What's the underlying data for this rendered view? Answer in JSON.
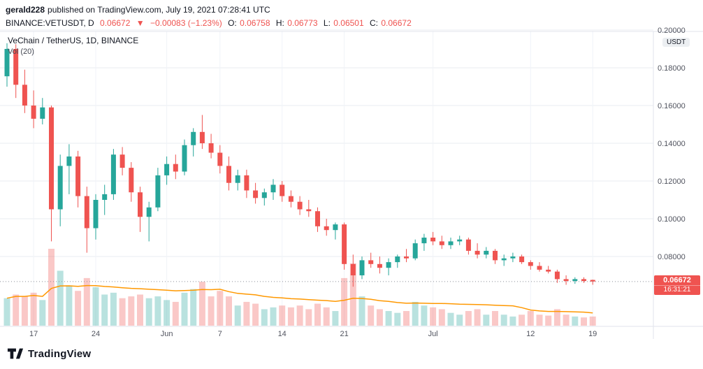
{
  "publisher": {
    "username": "gerald228",
    "suffix": "published on TradingView.com, July 19, 2021 07:28:41 UTC"
  },
  "symbol_bar": {
    "symbol": "BINANCE:VETUSDT, D",
    "price": "0.06672",
    "change_icon": "▼",
    "change": "−0.00083 (−1.23%)",
    "ohlc": [
      {
        "label": "O:",
        "value": "0.06758"
      },
      {
        "label": "H:",
        "value": "0.06773"
      },
      {
        "label": "L:",
        "value": "0.06501"
      },
      {
        "label": "C:",
        "value": "0.06672"
      }
    ]
  },
  "footer": {
    "brand": "TradingView"
  },
  "colors": {
    "up": "#26a69a",
    "down": "#ef5350",
    "vol_up": "rgba(38,166,154,0.32)",
    "vol_down": "rgba(239,83,80,0.32)",
    "ma_line": "#ff9800",
    "grid_h": "#e9edf2",
    "grid_v": "#f0f3f8",
    "border": "#e0e3eb",
    "axis_text": "#50535e",
    "price_line": "#8a8e98",
    "badge_bg": "#ef5350",
    "badge_text": "#ffffff"
  },
  "chart_data": {
    "type": "candlestick_with_volume",
    "title": "VeChain / TetherUS, 1D, BINANCE",
    "volume_label": "Vol (20)",
    "volume_ma_window": 20,
    "last_price": 0.06672,
    "last_price_label": "0.06672",
    "countdown": "16:31:21",
    "price_axis": {
      "unit": "USDT",
      "ticks": [
        0.2,
        0.18,
        0.16,
        0.14,
        0.12,
        0.1,
        0.08
      ],
      "tick_labels": [
        "0.20000",
        "0.18000",
        "0.16000",
        "0.14000",
        "0.12000",
        "0.10000",
        "0.08000"
      ]
    },
    "time_axis": {
      "labels": [
        {
          "text": "17",
          "index": 3
        },
        {
          "text": "24",
          "index": 10
        },
        {
          "text": "Jun",
          "index": 18
        },
        {
          "text": "7",
          "index": 24
        },
        {
          "text": "14",
          "index": 31
        },
        {
          "text": "21",
          "index": 38
        },
        {
          "text": "Jul",
          "index": 48
        },
        {
          "text": "12",
          "index": 59
        },
        {
          "text": "19",
          "index": 66
        }
      ]
    },
    "columns": [
      "time",
      "open",
      "high",
      "low",
      "close",
      "volume"
    ],
    "candles": [
      [
        "May 14",
        0.1755,
        0.193,
        0.17,
        0.19,
        1.5
      ],
      [
        "May 15",
        0.19,
        0.1925,
        0.164,
        0.171,
        1.7
      ],
      [
        "May 16",
        0.171,
        0.179,
        0.156,
        0.16,
        1.6
      ],
      [
        "May 17",
        0.16,
        0.168,
        0.148,
        0.153,
        1.8
      ],
      [
        "May 18",
        0.153,
        0.164,
        0.15,
        0.159,
        1.4
      ],
      [
        "May 19",
        0.159,
        0.16,
        0.088,
        0.105,
        4.2
      ],
      [
        "May 20",
        0.105,
        0.134,
        0.096,
        0.128,
        3.0
      ],
      [
        "May 21",
        0.128,
        0.1395,
        0.113,
        0.133,
        2.2
      ],
      [
        "May 22",
        0.133,
        0.136,
        0.106,
        0.112,
        1.9
      ],
      [
        "May 23",
        0.112,
        0.117,
        0.082,
        0.095,
        2.6
      ],
      [
        "May 24",
        0.095,
        0.113,
        0.089,
        0.11,
        2.1
      ],
      [
        "May 25",
        0.11,
        0.118,
        0.102,
        0.113,
        1.7
      ],
      [
        "May 26",
        0.113,
        0.137,
        0.11,
        0.134,
        1.8
      ],
      [
        "May 27",
        0.134,
        0.138,
        0.123,
        0.127,
        1.5
      ],
      [
        "May 28",
        0.127,
        0.13,
        0.109,
        0.114,
        1.6
      ],
      [
        "May 29",
        0.114,
        0.117,
        0.093,
        0.101,
        1.7
      ],
      [
        "May 30",
        0.101,
        0.109,
        0.088,
        0.106,
        1.5
      ],
      [
        "May 31",
        0.106,
        0.127,
        0.104,
        0.123,
        1.6
      ],
      [
        "Jun 1",
        0.123,
        0.133,
        0.118,
        0.129,
        1.4
      ],
      [
        "Jun 2",
        0.129,
        0.134,
        0.121,
        0.125,
        1.3
      ],
      [
        "Jun 3",
        0.125,
        0.142,
        0.123,
        0.139,
        1.8
      ],
      [
        "Jun 4",
        0.139,
        0.148,
        0.133,
        0.146,
        2.0
      ],
      [
        "Jun 5",
        0.146,
        0.155,
        0.137,
        0.14,
        2.4
      ],
      [
        "Jun 6",
        0.14,
        0.145,
        0.132,
        0.135,
        1.6
      ],
      [
        "Jun 7",
        0.135,
        0.139,
        0.124,
        0.128,
        1.9
      ],
      [
        "Jun 8",
        0.128,
        0.133,
        0.115,
        0.119,
        1.6
      ],
      [
        "Jun 9",
        0.119,
        0.126,
        0.115,
        0.123,
        1.1
      ],
      [
        "Jun 10",
        0.123,
        0.126,
        0.111,
        0.115,
        1.3
      ],
      [
        "Jun 11",
        0.115,
        0.119,
        0.108,
        0.111,
        1.2
      ],
      [
        "Jun 12",
        0.111,
        0.116,
        0.107,
        0.114,
        0.9
      ],
      [
        "Jun 13",
        0.114,
        0.121,
        0.11,
        0.118,
        1.0
      ],
      [
        "Jun 14",
        0.118,
        0.12,
        0.109,
        0.112,
        1.1
      ],
      [
        "Jun 15",
        0.112,
        0.115,
        0.106,
        0.109,
        1.0
      ],
      [
        "Jun 16",
        0.109,
        0.112,
        0.102,
        0.105,
        1.1
      ],
      [
        "Jun 17",
        0.105,
        0.11,
        0.101,
        0.104,
        0.9
      ],
      [
        "Jun 18",
        0.104,
        0.106,
        0.093,
        0.096,
        1.2
      ],
      [
        "Jun 19",
        0.096,
        0.1,
        0.091,
        0.094,
        1.0
      ],
      [
        "Jun 20",
        0.094,
        0.098,
        0.089,
        0.097,
        0.8
      ],
      [
        "Jun 21",
        0.097,
        0.098,
        0.073,
        0.076,
        2.6
      ],
      [
        "Jun 22",
        0.076,
        0.081,
        0.064,
        0.07,
        3.4
      ],
      [
        "Jun 23",
        0.07,
        0.08,
        0.068,
        0.078,
        1.6
      ],
      [
        "Jun 24",
        0.078,
        0.082,
        0.074,
        0.076,
        1.1
      ],
      [
        "Jun 25",
        0.076,
        0.08,
        0.071,
        0.074,
        0.9
      ],
      [
        "Jun 26",
        0.074,
        0.079,
        0.07,
        0.077,
        0.8
      ],
      [
        "Jun 27",
        0.077,
        0.081,
        0.074,
        0.08,
        0.7
      ],
      [
        "Jun 28",
        0.08,
        0.084,
        0.077,
        0.079,
        0.8
      ],
      [
        "Jun 29",
        0.079,
        0.089,
        0.078,
        0.087,
        1.3
      ],
      [
        "Jun 30",
        0.087,
        0.092,
        0.083,
        0.09,
        1.1
      ],
      [
        "Jul 1",
        0.09,
        0.093,
        0.086,
        0.088,
        1.0
      ],
      [
        "Jul 2",
        0.088,
        0.091,
        0.084,
        0.086,
        0.9
      ],
      [
        "Jul 3",
        0.086,
        0.09,
        0.084,
        0.088,
        0.7
      ],
      [
        "Jul 4",
        0.088,
        0.091,
        0.086,
        0.089,
        0.6
      ],
      [
        "Jul 5",
        0.089,
        0.09,
        0.081,
        0.083,
        0.8
      ],
      [
        "Jul 6",
        0.083,
        0.087,
        0.079,
        0.081,
        0.9
      ],
      [
        "Jul 7",
        0.081,
        0.085,
        0.079,
        0.083,
        0.6
      ],
      [
        "Jul 8",
        0.083,
        0.084,
        0.076,
        0.078,
        0.8
      ],
      [
        "Jul 9",
        0.078,
        0.081,
        0.075,
        0.079,
        0.6
      ],
      [
        "Jul 10",
        0.079,
        0.082,
        0.077,
        0.08,
        0.5
      ],
      [
        "Jul 11",
        0.08,
        0.081,
        0.076,
        0.077,
        0.6
      ],
      [
        "Jul 12",
        0.077,
        0.078,
        0.073,
        0.075,
        0.8
      ],
      [
        "Jul 13",
        0.075,
        0.077,
        0.072,
        0.073,
        0.6
      ],
      [
        "Jul 14",
        0.073,
        0.075,
        0.071,
        0.072,
        0.55
      ],
      [
        "Jul 15",
        0.072,
        0.073,
        0.066,
        0.068,
        0.9
      ],
      [
        "Jul 16",
        0.068,
        0.07,
        0.065,
        0.067,
        0.6
      ],
      [
        "Jul 17",
        0.067,
        0.069,
        0.0655,
        0.068,
        0.5
      ],
      [
        "Jul 18",
        0.068,
        0.069,
        0.066,
        0.067,
        0.45
      ],
      [
        "Jul 19",
        0.06758,
        0.06773,
        0.06501,
        0.06672,
        0.5
      ]
    ]
  }
}
